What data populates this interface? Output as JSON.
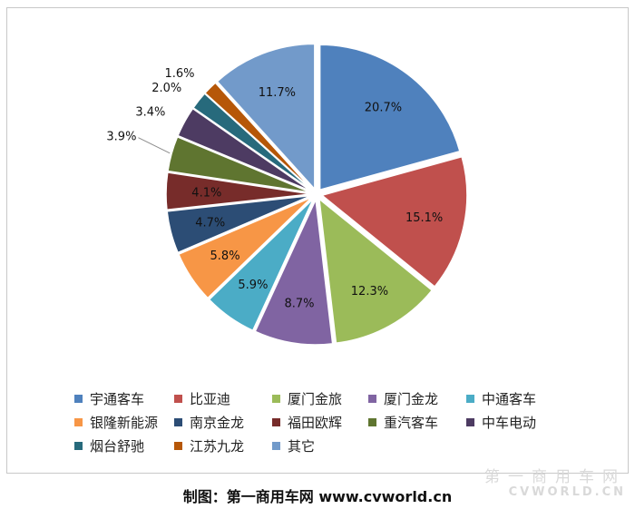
{
  "chart_data": {
    "type": "pie",
    "title": "",
    "unit": "%",
    "categories": [
      "宇通客车",
      "比亚迪",
      "厦门金旅",
      "厦门金龙",
      "中通客车",
      "银隆新能源",
      "南京金龙",
      "福田欧辉",
      "重汽客车",
      "中车电动",
      "烟台舒驰",
      "江苏九龙",
      "其它"
    ],
    "values": [
      20.7,
      15.1,
      12.3,
      8.7,
      5.9,
      5.8,
      4.7,
      4.1,
      3.9,
      3.4,
      2.0,
      1.6,
      11.7
    ],
    "data_labels": [
      "20.7%",
      "15.1%",
      "12.3%",
      "8.7%",
      "5.9%",
      "5.8%",
      "4.7%",
      "4.1%",
      "3.9%",
      "3.4%",
      "2.0%",
      "1.6%",
      "11.7%"
    ],
    "colors": [
      "#4F81BD",
      "#C0504D",
      "#9BBB59",
      "#8064A2",
      "#4BACC6",
      "#F79646",
      "#2C4D75",
      "#772C2A",
      "#5F7530",
      "#4D3B62",
      "#276A7C",
      "#B65708",
      "#729ACA"
    ],
    "exploded": true,
    "legend_position": "bottom"
  },
  "footer": {
    "credit": "制图：第一商用车网 www.cvworld.cn"
  },
  "watermark": {
    "cn": "第一商用车网",
    "en": "CVWORLD.CN"
  }
}
